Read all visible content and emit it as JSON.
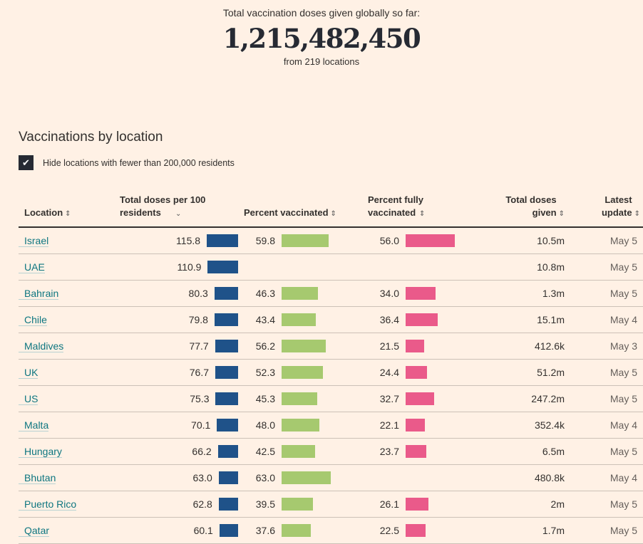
{
  "header": {
    "label": "Total vaccination doses given globally so far:",
    "total": "1,215,482,450",
    "sub": "from 219 locations"
  },
  "section": {
    "title": "Vaccinations by location",
    "hide_checkbox": {
      "checked": true,
      "label": "Hide locations with fewer than 200,000 residents"
    }
  },
  "colors": {
    "background": "#fff1e5",
    "doses_bar": "#1f5289",
    "vaccinated_bar": "#a6c96f",
    "fully_bar": "#ea5a8a",
    "link": "#0d7680"
  },
  "table": {
    "columns": [
      {
        "key": "location",
        "label": "Location",
        "sort_icon": "sort-both"
      },
      {
        "key": "doses_per_100",
        "label": "Total doses per 100 residents",
        "sort_icon": "sort-desc"
      },
      {
        "key": "pct_vaccinated",
        "label": "Percent vaccinated",
        "sort_icon": "sort-both"
      },
      {
        "key": "pct_fully",
        "label": "Percent fully vaccinated",
        "sort_icon": "sort-both"
      },
      {
        "key": "total_given",
        "label": "Total doses given",
        "sort_icon": "sort-both"
      },
      {
        "key": "latest",
        "label": "Latest update",
        "sort_icon": "sort-both"
      }
    ],
    "rows": [
      {
        "location": "Israel",
        "doses": "115.8",
        "pv": "59.8",
        "pf": "56.0",
        "given": "10.5m",
        "date": "May 5"
      },
      {
        "location": "UAE",
        "doses": "110.9",
        "pv": "",
        "pf": "",
        "given": "10.8m",
        "date": "May 5"
      },
      {
        "location": "Bahrain",
        "doses": "80.3",
        "pv": "46.3",
        "pf": "34.0",
        "given": "1.3m",
        "date": "May 5"
      },
      {
        "location": "Chile",
        "doses": "79.8",
        "pv": "43.4",
        "pf": "36.4",
        "given": "15.1m",
        "date": "May 4"
      },
      {
        "location": "Maldives",
        "doses": "77.7",
        "pv": "56.2",
        "pf": "21.5",
        "given": "412.6k",
        "date": "May 3"
      },
      {
        "location": "UK",
        "doses": "76.7",
        "pv": "52.3",
        "pf": "24.4",
        "given": "51.2m",
        "date": "May 5"
      },
      {
        "location": "US",
        "doses": "75.3",
        "pv": "45.3",
        "pf": "32.7",
        "given": "247.2m",
        "date": "May 5"
      },
      {
        "location": "Malta",
        "doses": "70.1",
        "pv": "48.0",
        "pf": "22.1",
        "given": "352.4k",
        "date": "May 4"
      },
      {
        "location": "Hungary",
        "doses": "66.2",
        "pv": "42.5",
        "pf": "23.7",
        "given": "6.5m",
        "date": "May 5"
      },
      {
        "location": "Bhutan",
        "doses": "63.0",
        "pv": "63.0",
        "pf": "",
        "given": "480.8k",
        "date": "May 4"
      },
      {
        "location": "Puerto Rico",
        "doses": "62.8",
        "pv": "39.5",
        "pf": "26.1",
        "given": "2m",
        "date": "May 5"
      },
      {
        "location": "Qatar",
        "doses": "60.1",
        "pv": "37.6",
        "pf": "22.5",
        "given": "1.7m",
        "date": "May 5"
      }
    ]
  }
}
